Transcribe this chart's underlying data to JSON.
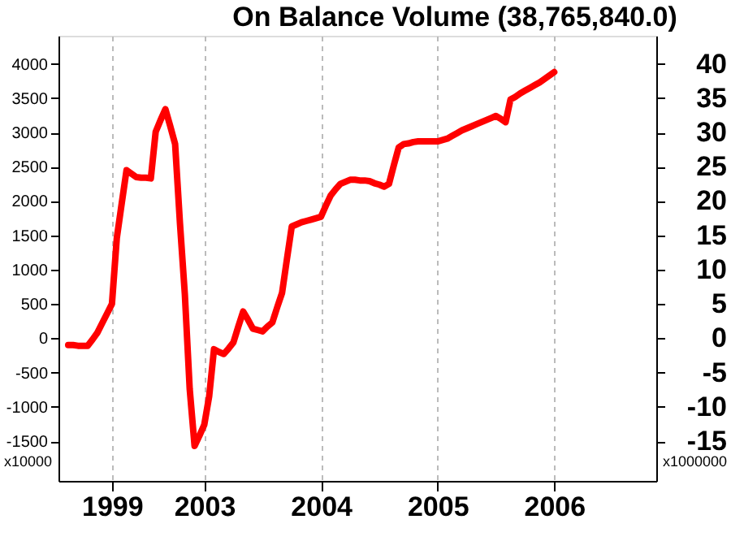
{
  "chart_data": {
    "type": "line",
    "title": "On Balance Volume (38,765,840.0)",
    "categories": [
      null,
      null,
      null,
      null,
      null,
      null,
      null,
      null,
      null,
      null,
      null,
      "1999",
      null,
      null,
      null,
      null,
      null,
      null,
      null,
      null,
      null,
      null,
      null,
      null,
      null,
      null,
      null,
      null,
      null,
      null,
      "2003",
      null,
      null,
      null,
      null,
      null,
      null,
      null,
      null,
      null,
      null,
      null,
      null,
      null,
      null,
      null,
      null,
      null,
      null,
      null,
      null,
      null,
      null,
      null,
      "2004",
      null,
      null,
      null,
      null,
      null,
      null,
      null,
      null,
      null,
      null,
      null,
      null,
      null,
      null,
      null,
      null,
      null,
      null,
      null,
      null,
      null,
      null,
      null,
      "2005",
      null,
      null,
      null,
      null,
      null,
      null,
      null,
      null,
      null,
      null,
      null,
      null,
      null,
      null,
      null,
      null,
      null,
      null,
      null,
      null,
      null,
      null,
      null,
      "2006",
      null,
      null,
      null,
      null,
      null,
      null,
      null,
      null,
      null,
      null,
      null,
      null,
      null,
      null,
      null,
      null,
      null,
      null,
      null,
      null,
      null
    ],
    "series": [
      {
        "color": "#ff0000",
        "values": [
          null,
          null,
          -100,
          -100,
          -110,
          -110,
          -110,
          -20,
          80,
          220,
          360,
          500,
          1460,
          1960,
          2450,
          2400,
          2350,
          2340,
          2340,
          2330,
          3010,
          3180,
          3340,
          3090,
          2830,
          1670,
          640,
          -740,
          -1570,
          -1420,
          -1260,
          -850,
          -160,
          -200,
          -230,
          -150,
          -60,
          170,
          390,
          270,
          140,
          120,
          100,
          170,
          230,
          450,
          660,
          1150,
          1630,
          1660,
          1690,
          1710,
          1730,
          1750,
          1770,
          1930,
          2080,
          2170,
          2250,
          2280,
          2310,
          2310,
          2300,
          2300,
          2290,
          2260,
          2240,
          2210,
          2250,
          2520,
          2780,
          2830,
          2840,
          2860,
          2870,
          2870,
          2870,
          2870,
          2870,
          2890,
          2910,
          2950,
          2990,
          3030,
          3060,
          3090,
          3120,
          3150,
          3180,
          3210,
          3240,
          3200,
          3150,
          3480,
          3520,
          3570,
          3610,
          3650,
          3690,
          3730,
          3780,
          3830,
          3880,
          null,
          null,
          null,
          null,
          null,
          null,
          null,
          null,
          null,
          null,
          null,
          null,
          null,
          null,
          null,
          null,
          null,
          null,
          null,
          null,
          null
        ]
      }
    ],
    "ylim": [
      -2080,
      4410
    ],
    "yticks": [
      -1500,
      -1000,
      -500,
      0,
      500,
      1000,
      1500,
      2000,
      2500,
      3000,
      3500,
      4000
    ],
    "y2lim": [
      -20.8,
      44.1
    ],
    "y2ticks": [
      -15,
      -10,
      -5,
      0,
      5,
      10,
      15,
      20,
      25,
      30,
      35,
      40
    ],
    "annotations": [
      "x10000",
      "x1000000"
    ],
    "grid": "x",
    "line_style": "solid",
    "marker": "none"
  }
}
